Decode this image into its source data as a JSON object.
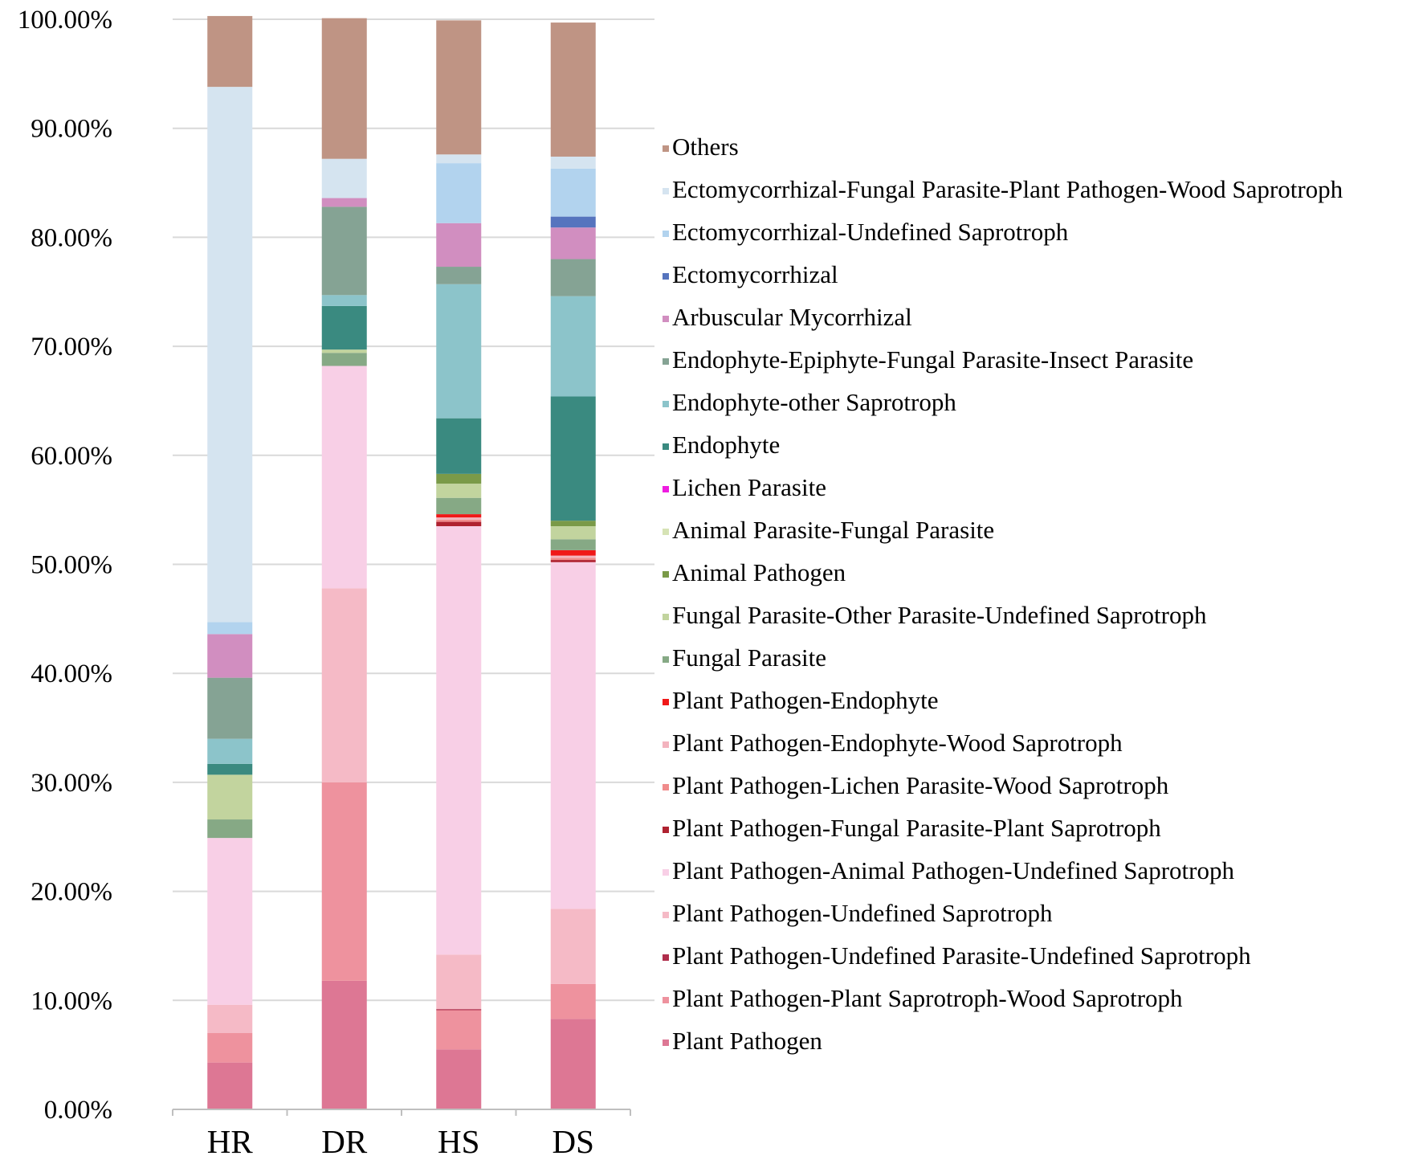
{
  "chart_data": {
    "type": "bar",
    "stacked": true,
    "categories": [
      "HR",
      "DR",
      "HS",
      "DS"
    ],
    "ylim": [
      0,
      100
    ],
    "yticks": [
      "0.00%",
      "10.00%",
      "20.00%",
      "30.00%",
      "40.00%",
      "50.00%",
      "60.00%",
      "70.00%",
      "80.00%",
      "90.00%",
      "100.00%"
    ],
    "grid": true,
    "legend_position": "right",
    "series": [
      {
        "name": "Plant Pathogen",
        "color": "#DD7794",
        "values": [
          4.3,
          11.8,
          5.5,
          8.3
        ]
      },
      {
        "name": "Plant Pathogen-Plant Saprotroph-Wood Saprotroph",
        "color": "#EE929E",
        "values": [
          2.7,
          18.2,
          3.6,
          3.2
        ]
      },
      {
        "name": "Plant Pathogen-Undefined Parasite-Undefined Saprotroph",
        "color": "#B02E4C",
        "values": [
          0,
          0,
          0.1,
          0
        ]
      },
      {
        "name": "Plant Pathogen-Undefined Saprotroph",
        "color": "#F5BAC6",
        "values": [
          2.6,
          17.8,
          5,
          6.9
        ]
      },
      {
        "name": "Plant Pathogen-Animal Pathogen-Undefined Saprotroph",
        "color": "#F8CFE6",
        "values": [
          15.3,
          20.4,
          39.3,
          31.8
        ]
      },
      {
        "name": "Plant Pathogen-Fungal Parasite-Plant Saprotroph",
        "color": "#AF2230",
        "values": [
          0,
          0,
          0.4,
          0.2
        ]
      },
      {
        "name": "Plant Pathogen-Lichen Parasite-Wood Saprotroph",
        "color": "#F08C8C",
        "values": [
          0,
          0,
          0.2,
          0.2
        ]
      },
      {
        "name": "Plant Pathogen-Endophyte-Wood Saprotroph",
        "color": "#F3B3BE",
        "values": [
          0,
          0,
          0.2,
          0.2
        ]
      },
      {
        "name": "Plant Pathogen-Endophyte",
        "color": "#F01818",
        "values": [
          0,
          0,
          0.3,
          0.5
        ]
      },
      {
        "name": "Fungal Parasite",
        "color": "#86A985",
        "values": [
          1.7,
          1.2,
          1.5,
          1
        ]
      },
      {
        "name": "Fungal Parasite-Other Parasite-Undefined Saprotroph",
        "color": "#C2D49E",
        "values": [
          4.1,
          0.3,
          1.3,
          1.2
        ]
      },
      {
        "name": "Animal Pathogen",
        "color": "#7A9A48",
        "values": [
          0,
          0,
          0.9,
          0.5
        ]
      },
      {
        "name": "Animal Parasite-Fungal Parasite",
        "color": "#D6E3B5",
        "values": [
          0,
          0,
          0,
          0
        ]
      },
      {
        "name": "Lichen Parasite",
        "color": "#EE1CE0",
        "values": [
          0,
          0,
          0,
          0
        ]
      },
      {
        "name": "Endophyte",
        "color": "#3A8A80",
        "values": [
          1,
          4,
          5.1,
          11.4
        ]
      },
      {
        "name": "Endophyte-other Saprotroph",
        "color": "#8CC4CA",
        "values": [
          2.3,
          1,
          12.3,
          9.2
        ]
      },
      {
        "name": "Endophyte-Epiphyte-Fungal Parasite-Insect Parasite",
        "color": "#85A394",
        "values": [
          5.6,
          8.1,
          1.6,
          3.4
        ]
      },
      {
        "name": "Arbuscular Mycorrhizal",
        "color": "#D18EC0",
        "values": [
          4,
          0.8,
          4,
          2.9
        ]
      },
      {
        "name": "Ectomycorrhizal",
        "color": "#5674BE",
        "values": [
          0,
          0,
          0,
          1
        ]
      },
      {
        "name": "Ectomycorrhizal-Undefined Saprotroph",
        "color": "#B2D3EE",
        "values": [
          1.1,
          0,
          5.5,
          4.4
        ]
      },
      {
        "name": "Ectomycorrhizal-Fungal Parasite-Plant Pathogen-Wood Saprotroph",
        "color": "#D5E4F0",
        "values": [
          49.1,
          3.6,
          0.8,
          1.1
        ]
      },
      {
        "name": "Others",
        "color": "#BF9484",
        "values": [
          6.5,
          12.9,
          12.3,
          12.3
        ]
      }
    ]
  }
}
